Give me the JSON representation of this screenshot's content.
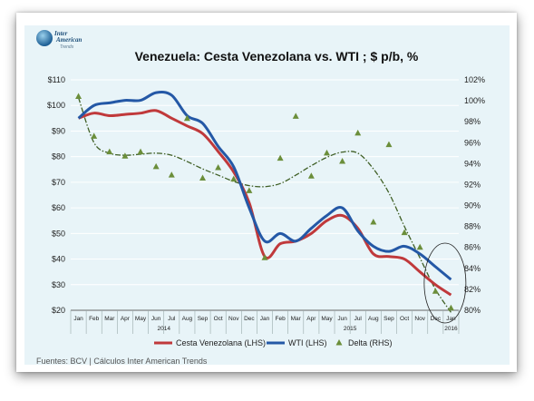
{
  "logo": {
    "line1": "Inter",
    "line2": "American",
    "line3": "Trends"
  },
  "footer": {
    "source": "Fuentes: BCV | Cálculos Inter American Trends"
  },
  "colors": {
    "cesta": "#c0393b",
    "wti": "#2458a6",
    "delta": "#6b8e3a",
    "trend": "#3f5f25",
    "grid": "#ffffff",
    "panel": "#e8f4f8"
  },
  "chart_data": {
    "type": "line",
    "title": "Venezuela: Cesta Venezolana vs. WTI ; $ p/b, %",
    "x": [
      "Jan",
      "Feb",
      "Mar",
      "Apr",
      "May",
      "Jun",
      "Jul",
      "Aug",
      "Sep",
      "Oct",
      "Nov",
      "Dec",
      "Jan",
      "Feb",
      "Mar",
      "Apr",
      "May",
      "Jun",
      "Jul",
      "Aug",
      "Sep",
      "Oct",
      "Nov",
      "Dec",
      "Jan"
    ],
    "year_labels": [
      {
        "label": "2014",
        "from": 0,
        "to": 11
      },
      {
        "label": "2015",
        "from": 12,
        "to": 23
      },
      {
        "label": "2016",
        "from": 24,
        "to": 24
      }
    ],
    "ylim": [
      20,
      110
    ],
    "yticks": [
      "$20",
      "$30",
      "$40",
      "$50",
      "$60",
      "$70",
      "$80",
      "$90",
      "$100",
      "$110"
    ],
    "ylim_right": [
      80,
      102
    ],
    "yticks_right": [
      "80%",
      "82%",
      "84%",
      "86%",
      "88%",
      "90%",
      "92%",
      "94%",
      "96%",
      "98%",
      "100%",
      "102%"
    ],
    "legend_position": "bottom",
    "grid": true,
    "series": [
      {
        "name": "Cesta Venezolana (LHS)",
        "axis": "left",
        "type": "line",
        "values": [
          95,
          97,
          96,
          96.5,
          97,
          98,
          95,
          92,
          89,
          82,
          74,
          62,
          41,
          46,
          47,
          50,
          55,
          57,
          52,
          42,
          41,
          40,
          35,
          30,
          26
        ]
      },
      {
        "name": "WTI (LHS)",
        "axis": "left",
        "type": "line",
        "values": [
          95,
          100,
          101,
          102,
          102,
          105,
          104,
          96,
          93,
          84,
          76,
          60,
          47,
          50,
          47,
          52,
          57,
          60,
          51,
          45,
          43,
          45,
          42,
          37,
          32
        ]
      },
      {
        "name": "Delta (RHS)",
        "axis": "right",
        "type": "scatter",
        "values": [
          100.4,
          96.6,
          95.1,
          94.7,
          95.1,
          93.7,
          92.9,
          98.3,
          92.6,
          93.6,
          92.5,
          91.4,
          85.0,
          94.5,
          98.5,
          92.8,
          95.0,
          94.2,
          96.9,
          88.4,
          95.8,
          87.4,
          86.0,
          81.8,
          80.2
        ]
      },
      {
        "type": "line",
        "axis": "right",
        "style": "dash-dot",
        "values": [
          100.3,
          96.0,
          95.0,
          94.8,
          94.9,
          95.0,
          94.8,
          94.2,
          93.5,
          92.9,
          92.3,
          91.9,
          91.8,
          92.1,
          92.9,
          93.8,
          94.6,
          95.1,
          95.0,
          93.5,
          91.2,
          88.0,
          85.0,
          82.0,
          79.8
        ]
      }
    ],
    "annotations": [
      {
        "type": "ellipse",
        "around": [
          "Dec",
          "Jan"
        ]
      }
    ]
  }
}
